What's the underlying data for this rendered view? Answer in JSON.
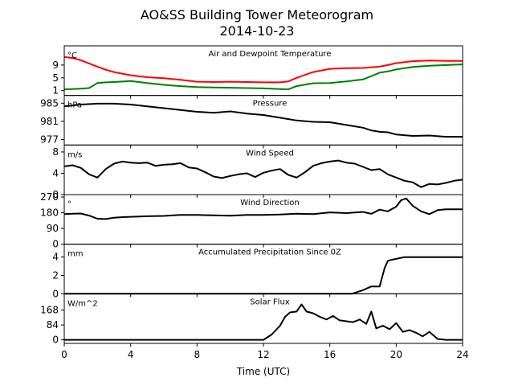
{
  "figure": {
    "title_line1": "AO&SS Building Tower Meteorogram",
    "title_line2": "2014-10-23",
    "xlabel": "Time (UTC)",
    "x_ticks": [
      "0",
      "4",
      "8",
      "12",
      "16",
      "20",
      "24"
    ]
  },
  "chart_data": [
    {
      "type": "line",
      "title": "Air and Dewpoint Temperature",
      "unit": "°C",
      "xlim": [
        0,
        24
      ],
      "ylim": [
        -0.5,
        15
      ],
      "y_ticks": [
        1,
        5,
        9
      ],
      "y_tick_labels": [
        "1",
        "5",
        "9"
      ],
      "x": [
        0,
        0.5,
        1,
        1.5,
        2,
        2.5,
        3,
        4,
        5,
        6,
        7,
        8,
        9,
        10,
        11,
        12,
        13,
        13.5,
        14,
        15,
        16,
        17,
        18,
        19,
        19.5,
        20,
        21,
        22,
        23,
        24
      ],
      "series": [
        {
          "color": "#ff0000",
          "values": [
            11.5,
            11.2,
            10.5,
            9.5,
            8.5,
            7.5,
            6.8,
            5.8,
            5.2,
            4.9,
            4.4,
            3.8,
            3.7,
            3.8,
            3.7,
            3.6,
            3.6,
            3.9,
            5.0,
            6.8,
            7.8,
            8.0,
            8.1,
            8.5,
            9.0,
            9.6,
            10.2,
            10.4,
            10.3,
            10.3
          ]
        },
        {
          "color": "#008000",
          "values": [
            1.4,
            1.5,
            1.6,
            1.8,
            3.4,
            3.6,
            3.7,
            4.0,
            3.4,
            2.8,
            2.4,
            2.1,
            2.0,
            1.9,
            1.8,
            1.7,
            1.5,
            1.4,
            2.4,
            3.3,
            3.4,
            3.9,
            4.5,
            6.6,
            7.0,
            7.6,
            8.4,
            8.8,
            9.0,
            9.2
          ]
        }
      ]
    },
    {
      "type": "line",
      "title": "Pressure",
      "unit": "hPa",
      "xlim": [
        0,
        24
      ],
      "ylim": [
        975.8,
        986.7
      ],
      "y_ticks": [
        977,
        981,
        985
      ],
      "y_tick_labels": [
        "977",
        "981",
        "985"
      ],
      "x": [
        0,
        1,
        2,
        3,
        4,
        5,
        6,
        7,
        8,
        9,
        10,
        11,
        12,
        13,
        14,
        15,
        16,
        17,
        18,
        18.5,
        19,
        19.5,
        20,
        21,
        22,
        23,
        24
      ],
      "series": [
        {
          "color": "#000000",
          "values": [
            984.3,
            984.7,
            984.9,
            984.9,
            984.7,
            984.3,
            983.9,
            983.5,
            983.1,
            982.9,
            983.2,
            982.7,
            982.4,
            981.8,
            981.2,
            980.9,
            980.8,
            980.2,
            979.6,
            979.0,
            978.7,
            978.6,
            978.1,
            977.8,
            977.9,
            977.6,
            977.6
          ]
        }
      ]
    },
    {
      "type": "line",
      "title": "Wind Speed",
      "unit": "m/s",
      "xlim": [
        0,
        24
      ],
      "ylim": [
        0,
        9.3
      ],
      "y_ticks": [
        0,
        4,
        8
      ],
      "y_tick_labels": [
        "0",
        "4",
        "8"
      ],
      "x": [
        0,
        0.5,
        1,
        1.5,
        2,
        2.5,
        3,
        3.5,
        4,
        4.5,
        5,
        5.5,
        6,
        6.5,
        7,
        7.5,
        8,
        8.5,
        9,
        9.5,
        10,
        10.5,
        11,
        11.5,
        12,
        12.5,
        13,
        13.5,
        14,
        14.5,
        15,
        15.5,
        16,
        16.5,
        17,
        17.5,
        18,
        18.5,
        19,
        19.5,
        20,
        20.5,
        21,
        21.5,
        22,
        22.5,
        23,
        23.5,
        24
      ],
      "series": [
        {
          "color": "#000000",
          "values": [
            5.3,
            5.5,
            5.0,
            3.8,
            3.2,
            4.8,
            5.8,
            6.2,
            6.0,
            5.9,
            6.0,
            5.4,
            5.6,
            5.7,
            5.9,
            5.1,
            4.9,
            4.2,
            3.4,
            3.1,
            3.5,
            3.8,
            4.0,
            3.3,
            4.1,
            4.5,
            4.8,
            3.7,
            3.2,
            4.2,
            5.4,
            5.9,
            6.2,
            6.4,
            6.0,
            5.8,
            5.2,
            4.6,
            4.8,
            3.8,
            3.2,
            2.6,
            2.3,
            1.4,
            2.0,
            1.9,
            2.2,
            2.6,
            2.8
          ]
        }
      ]
    },
    {
      "type": "line",
      "title": "Wind Direction",
      "unit": "°",
      "xlim": [
        0,
        24
      ],
      "ylim": [
        0,
        284
      ],
      "y_ticks": [
        0,
        90,
        180,
        270
      ],
      "y_tick_labels": [
        "0",
        "90",
        "180",
        "270"
      ],
      "x": [
        0,
        0.5,
        1,
        1.5,
        2,
        2.5,
        3,
        3.5,
        4,
        5,
        6,
        7,
        8,
        9,
        10,
        11,
        12,
        13,
        14,
        15,
        16,
        17,
        18,
        18.5,
        19,
        19.5,
        20,
        20.3,
        20.6,
        21,
        21.5,
        22,
        22.5,
        23,
        24
      ],
      "series": [
        {
          "color": "#000000",
          "values": [
            172,
            175,
            176,
            164,
            146,
            144,
            152,
            155,
            157,
            160,
            162,
            168,
            168,
            165,
            163,
            168,
            168,
            170,
            175,
            172,
            182,
            178,
            185,
            174,
            198,
            188,
            215,
            252,
            262,
            220,
            188,
            172,
            195,
            200,
            200
          ]
        }
      ]
    },
    {
      "type": "line",
      "title": "Accumulated Precipitation Since 0Z",
      "unit": "mm",
      "xlim": [
        0,
        24
      ],
      "ylim": [
        0,
        5.4
      ],
      "y_ticks": [
        0,
        2,
        4
      ],
      "y_tick_labels": [
        "0",
        "2",
        "4"
      ],
      "x": [
        0,
        17.3,
        17.5,
        18.0,
        18.5,
        19.0,
        19.3,
        19.5,
        20.0,
        20.5,
        21,
        24
      ],
      "series": [
        {
          "color": "#000000",
          "values": [
            0,
            0,
            0.1,
            0.4,
            0.8,
            0.8,
            2.8,
            3.6,
            3.8,
            4.0,
            4.0,
            4.0
          ]
        }
      ]
    },
    {
      "type": "line",
      "title": "Solar Flux",
      "unit": "W/m^2",
      "xlim": [
        0,
        24
      ],
      "ylim": [
        -20,
        260
      ],
      "y_ticks": [
        0,
        84,
        168
      ],
      "y_tick_labels": [
        "0",
        "84",
        "168"
      ],
      "x": [
        0,
        6,
        12,
        12.5,
        13,
        13.3,
        13.6,
        14,
        14.3,
        14.6,
        15,
        15.4,
        15.8,
        16.2,
        16.6,
        17,
        17.4,
        17.8,
        18.2,
        18.5,
        18.8,
        19.2,
        19.6,
        20,
        20.4,
        20.8,
        21.2,
        21.6,
        22,
        22.5,
        23,
        24
      ],
      "series": [
        {
          "color": "#000000",
          "values": [
            0,
            0,
            0,
            30,
            80,
            130,
            155,
            160,
            200,
            160,
            150,
            130,
            115,
            135,
            110,
            105,
            100,
            115,
            90,
            160,
            65,
            80,
            60,
            95,
            45,
            55,
            40,
            20,
            45,
            5,
            0,
            0
          ]
        }
      ]
    }
  ]
}
